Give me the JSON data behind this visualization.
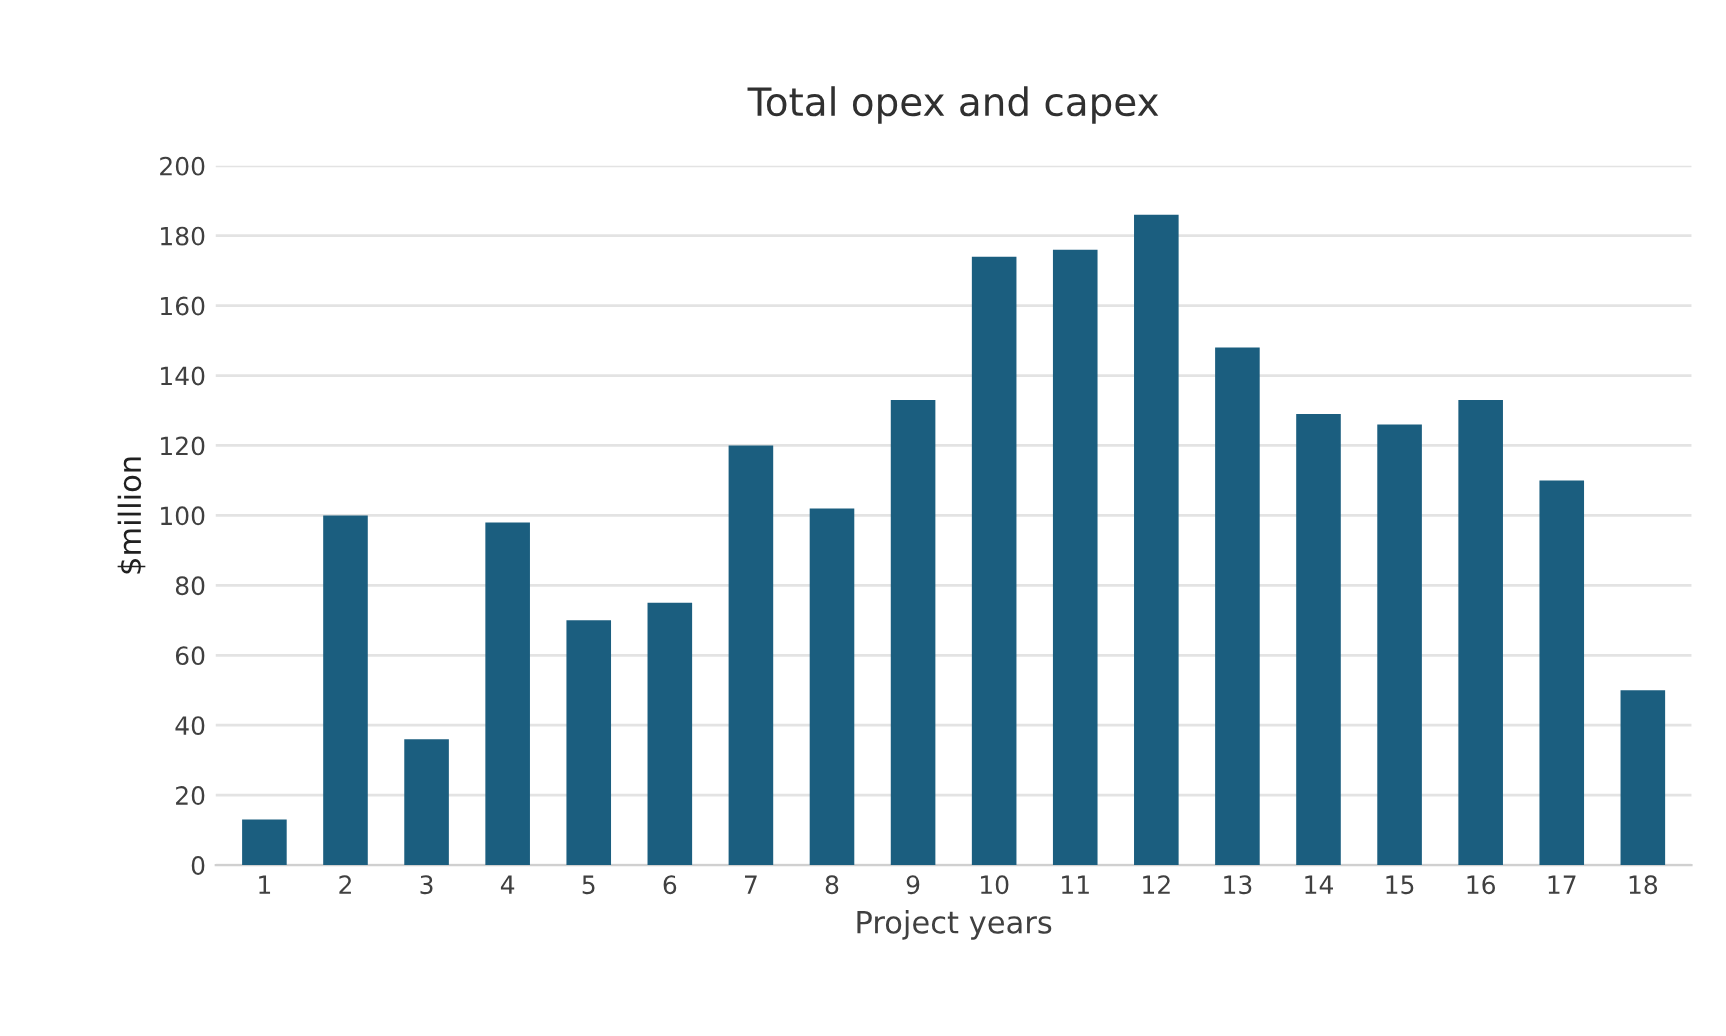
{
  "chart_data": {
    "type": "bar",
    "title": "Total opex and capex",
    "xlabel": "Project years",
    "ylabel": "$million",
    "categories": [
      "1",
      "2",
      "3",
      "4",
      "5",
      "6",
      "7",
      "8",
      "9",
      "10",
      "11",
      "12",
      "13",
      "14",
      "15",
      "16",
      "17",
      "18"
    ],
    "values": [
      13,
      100,
      36,
      98,
      70,
      75,
      120,
      102,
      133,
      174,
      176,
      186,
      148,
      129,
      126,
      133,
      110,
      50
    ],
    "color": "#1b5e7f",
    "ylim": [
      0,
      200
    ],
    "yticks": [
      0,
      20,
      40,
      60,
      80,
      100,
      120,
      140,
      160,
      180,
      200
    ],
    "grid": "y",
    "legend": false
  }
}
